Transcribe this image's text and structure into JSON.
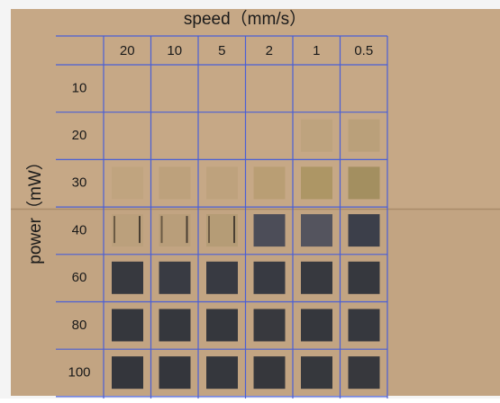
{
  "table": {
    "column_title": "speed（mm/s）",
    "row_title": "power（mW）",
    "columns": [
      "20",
      "10",
      "5",
      "2",
      "1",
      "0.5"
    ],
    "rows": [
      "10",
      "20",
      "30",
      "40",
      "60",
      "80",
      "100"
    ]
  }
}
